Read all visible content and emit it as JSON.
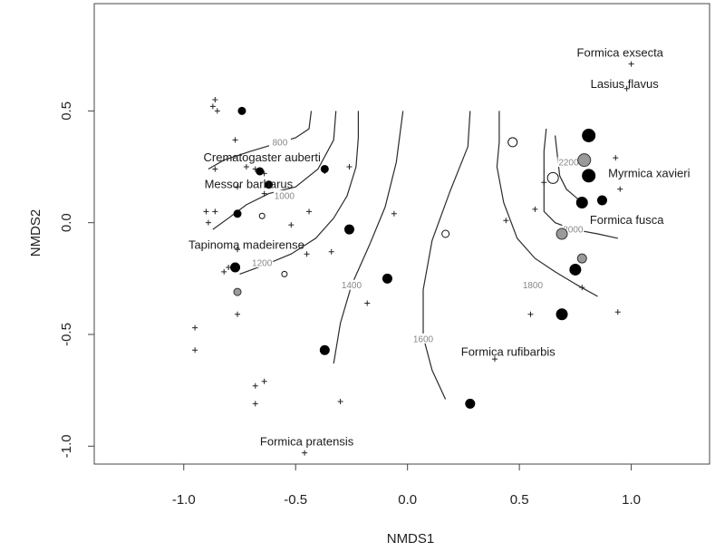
{
  "chart_data": {
    "type": "scatter",
    "xlabel": "NMDS1",
    "ylabel": "NMDS2",
    "xlim": [
      -1.4,
      1.35
    ],
    "ylim": [
      -1.08,
      0.98
    ],
    "x_ticks": [
      -1.0,
      -0.5,
      0.0,
      0.5,
      1.0
    ],
    "x_tick_labels": [
      "-1.0",
      "-0.5",
      "0.0",
      "0.5",
      "1.0"
    ],
    "y_ticks": [
      -1.0,
      -0.5,
      0.0,
      0.5
    ],
    "y_tick_labels": [
      "-1.0",
      "-0.5",
      "0.0",
      "0.5"
    ],
    "colors": {
      "contour": "#2b2b2b",
      "contour_label": "#888888",
      "grey_point": "#9a9a9a",
      "black_point": "#000000"
    },
    "species_labels": [
      {
        "text": "Formica exsecta",
        "x": 0.95,
        "y": 0.76
      },
      {
        "text": "Lasius flavus",
        "x": 0.97,
        "y": 0.62
      },
      {
        "text": "Crematogaster auberti",
        "x": -0.65,
        "y": 0.29
      },
      {
        "text": "Myrmica xavieri",
        "x": 1.08,
        "y": 0.22
      },
      {
        "text": "Messor barbarus",
        "x": -0.71,
        "y": 0.17
      },
      {
        "text": "Formica fusca",
        "x": 0.98,
        "y": 0.01
      },
      {
        "text": "Tapinoma madeirense",
        "x": -0.72,
        "y": -0.1
      },
      {
        "text": "Formica rufibarbis",
        "x": 0.45,
        "y": -0.58
      },
      {
        "text": "Formica pratensis",
        "x": -0.45,
        "y": -0.98
      }
    ],
    "species_crosses": [
      [
        1.0,
        0.71
      ],
      [
        0.98,
        0.6
      ],
      [
        0.93,
        0.29
      ],
      [
        0.95,
        0.15
      ],
      [
        0.94,
        -0.4
      ],
      [
        0.55,
        -0.41
      ],
      [
        0.39,
        -0.61
      ],
      [
        0.44,
        0.01
      ],
      [
        0.57,
        0.06
      ],
      [
        0.61,
        0.18
      ],
      [
        0.78,
        -0.29
      ],
      [
        -0.86,
        0.55
      ],
      [
        -0.87,
        0.52
      ],
      [
        -0.85,
        0.5
      ],
      [
        -0.77,
        0.37
      ],
      [
        -0.86,
        0.24
      ],
      [
        -0.72,
        0.25
      ],
      [
        -0.68,
        0.24
      ],
      [
        -0.64,
        0.22
      ],
      [
        -0.37,
        0.23
      ],
      [
        -0.26,
        0.25
      ],
      [
        -0.64,
        0.13
      ],
      [
        -0.76,
        0.16
      ],
      [
        -0.9,
        0.05
      ],
      [
        -0.89,
        0.0
      ],
      [
        -0.86,
        0.05
      ],
      [
        -0.44,
        0.05
      ],
      [
        -0.52,
        -0.01
      ],
      [
        -0.76,
        -0.12
      ],
      [
        -0.82,
        -0.22
      ],
      [
        -0.8,
        -0.2
      ],
      [
        -0.34,
        -0.13
      ],
      [
        -0.45,
        -0.14
      ],
      [
        -0.76,
        -0.41
      ],
      [
        -0.95,
        -0.47
      ],
      [
        -0.95,
        -0.57
      ],
      [
        -0.68,
        -0.73
      ],
      [
        -0.64,
        -0.71
      ],
      [
        -0.68,
        -0.81
      ],
      [
        -0.3,
        -0.8
      ],
      [
        -0.46,
        -1.03
      ],
      [
        -0.18,
        -0.36
      ],
      [
        -0.06,
        0.04
      ]
    ],
    "series": [
      {
        "style": "black",
        "points": [
          [
            -0.74,
            0.5
          ],
          [
            -0.66,
            0.23
          ],
          [
            -0.62,
            0.17
          ],
          [
            -0.37,
            0.24
          ],
          [
            -0.76,
            0.04
          ],
          [
            -0.26,
            -0.03
          ],
          [
            -0.77,
            -0.2
          ],
          [
            -0.09,
            -0.25
          ],
          [
            -0.37,
            -0.57
          ],
          [
            0.28,
            -0.81
          ],
          [
            0.69,
            -0.41
          ],
          [
            0.75,
            -0.21
          ],
          [
            0.78,
            0.09
          ],
          [
            0.87,
            0.1
          ]
        ],
        "sizes": [
          4,
          4,
          4,
          4,
          4,
          5,
          5,
          5,
          5,
          5,
          6,
          6,
          6,
          5
        ]
      },
      {
        "style": "large-black",
        "points": [
          [
            0.81,
            0.39
          ],
          [
            0.81,
            0.21
          ]
        ],
        "sizes": [
          7,
          7
        ]
      },
      {
        "style": "grey",
        "points": [
          [
            0.79,
            0.28
          ],
          [
            0.69,
            -0.05
          ],
          [
            0.78,
            -0.16
          ],
          [
            -0.76,
            -0.31
          ]
        ],
        "sizes": [
          7,
          6,
          5,
          4
        ]
      },
      {
        "style": "open",
        "points": [
          [
            0.47,
            0.36
          ],
          [
            0.65,
            0.2
          ],
          [
            0.17,
            -0.05
          ],
          [
            -0.65,
            0.03
          ],
          [
            -0.55,
            -0.23
          ]
        ],
        "sizes": [
          5,
          6,
          4,
          3,
          3
        ]
      }
    ],
    "contours": [
      {
        "level": "800",
        "path": [
          [
            -0.43,
            0.5
          ],
          [
            -0.44,
            0.42
          ],
          [
            -0.5,
            0.38
          ],
          [
            -0.6,
            0.35
          ],
          [
            -0.7,
            0.32
          ],
          [
            -0.82,
            0.28
          ],
          [
            -0.89,
            0.24
          ]
        ],
        "label_at": [
          -0.57,
          0.36
        ]
      },
      {
        "level": "1000",
        "path": [
          [
            -0.32,
            0.5
          ],
          [
            -0.33,
            0.37
          ],
          [
            -0.4,
            0.24
          ],
          [
            -0.5,
            0.16
          ],
          [
            -0.62,
            0.13
          ],
          [
            -0.72,
            0.08
          ],
          [
            -0.8,
            0.02
          ],
          [
            -0.87,
            -0.03
          ]
        ],
        "label_at": [
          -0.55,
          0.12
        ]
      },
      {
        "level": "1200",
        "path": [
          [
            -0.22,
            0.5
          ],
          [
            -0.22,
            0.38
          ],
          [
            -0.23,
            0.25
          ],
          [
            -0.27,
            0.12
          ],
          [
            -0.33,
            0.02
          ],
          [
            -0.41,
            -0.07
          ],
          [
            -0.52,
            -0.14
          ],
          [
            -0.64,
            -0.19
          ],
          [
            -0.75,
            -0.23
          ]
        ],
        "label_at": [
          -0.65,
          -0.18
        ]
      },
      {
        "level": "1400",
        "path": [
          [
            -0.02,
            0.5
          ],
          [
            -0.05,
            0.27
          ],
          [
            -0.1,
            0.07
          ],
          [
            -0.17,
            -0.1
          ],
          [
            -0.25,
            -0.28
          ],
          [
            -0.3,
            -0.45
          ],
          [
            -0.33,
            -0.63
          ]
        ],
        "label_at": [
          -0.25,
          -0.28
        ]
      },
      {
        "level": "1600",
        "path": [
          [
            0.28,
            0.5
          ],
          [
            0.27,
            0.34
          ],
          [
            0.19,
            0.14
          ],
          [
            0.11,
            -0.08
          ],
          [
            0.07,
            -0.3
          ],
          [
            0.07,
            -0.51
          ],
          [
            0.11,
            -0.66
          ],
          [
            0.17,
            -0.79
          ]
        ],
        "label_at": [
          0.07,
          -0.52
        ]
      },
      {
        "level": "1800",
        "path": [
          [
            0.41,
            0.5
          ],
          [
            0.41,
            0.36
          ],
          [
            0.4,
            0.25
          ],
          [
            0.43,
            0.09
          ],
          [
            0.49,
            -0.07
          ],
          [
            0.57,
            -0.16
          ],
          [
            0.66,
            -0.22
          ],
          [
            0.76,
            -0.28
          ],
          [
            0.85,
            -0.33
          ]
        ],
        "label_at": [
          0.56,
          -0.28
        ]
      },
      {
        "level": "2000",
        "path": [
          [
            0.62,
            0.42
          ],
          [
            0.61,
            0.32
          ],
          [
            0.61,
            0.23
          ],
          [
            0.61,
            0.13
          ],
          [
            0.61,
            0.05
          ],
          [
            0.66,
            0.0
          ],
          [
            0.74,
            -0.03
          ],
          [
            0.85,
            -0.05
          ],
          [
            0.94,
            -0.07
          ]
        ],
        "label_at": [
          0.74,
          -0.03
        ]
      },
      {
        "level": "2200",
        "path": [
          [
            0.66,
            0.39
          ],
          [
            0.67,
            0.3
          ],
          [
            0.68,
            0.21
          ],
          [
            0.71,
            0.15
          ],
          [
            0.78,
            0.09
          ]
        ],
        "label_at": [
          0.72,
          0.27
        ]
      }
    ]
  }
}
